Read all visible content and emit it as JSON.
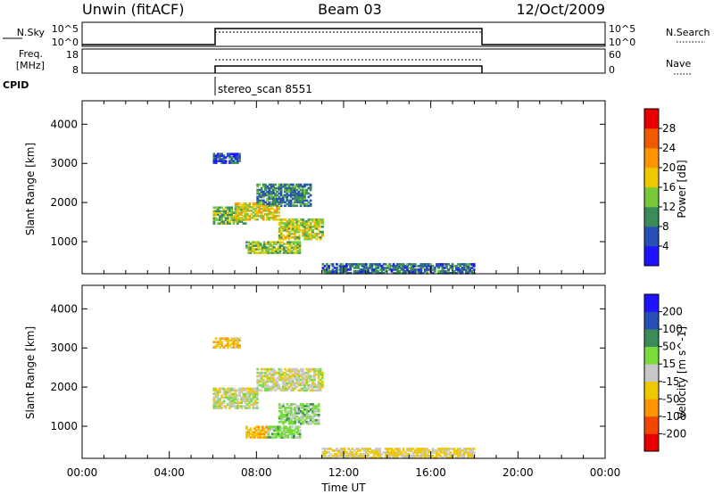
{
  "header": {
    "station": "Unwin (fitACF)",
    "beam": "Beam 03",
    "date": "12/Oct/2009"
  },
  "noise_panel": {
    "left_label": "N.Sky",
    "left_ticks": [
      "10^5",
      "10^0"
    ],
    "right_ticks": [
      "10^5",
      "10^0"
    ],
    "right_legend": "N.Search"
  },
  "freq_panel": {
    "left_label_1": "Freq.",
    "left_label_2": "[MHz]",
    "left_ticks": [
      "18",
      "8"
    ],
    "right_ticks": [
      "60",
      "0"
    ],
    "right_legend": "Nave"
  },
  "cpid": {
    "label": "CPID",
    "program": "stereo_scan 8551"
  },
  "x_axis": {
    "label": "Time UT",
    "ticks": [
      "00:00",
      "04:00",
      "08:00",
      "12:00",
      "16:00",
      "20:00",
      "00:00"
    ]
  },
  "colors": {
    "power": [
      "#1e14ff",
      "#2850b4",
      "#3c8c5a",
      "#78c83c",
      "#f0c800",
      "#ff9600",
      "#f05a00",
      "#e60000"
    ],
    "velocity": [
      "#e60000",
      "#f04600",
      "#ff9600",
      "#f0c800",
      "#c8c8c8",
      "#78dc3c",
      "#3c8c5a",
      "#2850b4",
      "#1e14ff"
    ]
  },
  "chart_data": [
    {
      "type": "heatmap",
      "name": "power",
      "xlabel": "Time UT",
      "ylabel": "Slant Range [km]",
      "xlim": [
        0,
        24
      ],
      "ylim": [
        180,
        4600
      ],
      "yticks": [
        1000,
        2000,
        3000,
        4000
      ],
      "colorbar_label": "Power [dB]",
      "colorbar_range": [
        0,
        32
      ],
      "colorbar_ticks": [
        "4",
        "8",
        "12",
        "16",
        "20",
        "24",
        "28"
      ],
      "regions": [
        {
          "t": [
            6.0,
            7.2
          ],
          "r": [
            3000,
            3250
          ],
          "v": 6
        },
        {
          "t": [
            6.0,
            7.5
          ],
          "r": [
            1450,
            1900
          ],
          "v": 13
        },
        {
          "t": [
            7.0,
            9.0
          ],
          "r": [
            1550,
            2000
          ],
          "v": 18
        },
        {
          "t": [
            8.0,
            10.5
          ],
          "r": [
            1900,
            2450
          ],
          "v": 9
        },
        {
          "t": [
            9.0,
            11.0
          ],
          "r": [
            1050,
            1550
          ],
          "v": 16
        },
        {
          "t": [
            7.5,
            10.0
          ],
          "r": [
            700,
            1000
          ],
          "v": 14
        },
        {
          "t": [
            11.0,
            18.0
          ],
          "r": [
            180,
            450
          ],
          "v": 8
        }
      ]
    },
    {
      "type": "heatmap",
      "name": "velocity",
      "xlabel": "Time UT",
      "ylabel": "Slant Range [km]",
      "xlim": [
        0,
        24
      ],
      "ylim": [
        180,
        4600
      ],
      "yticks": [
        1000,
        2000,
        3000,
        4000
      ],
      "colorbar_label": "Velocity [m s^-1]",
      "colorbar_range": [
        -250,
        250
      ],
      "colorbar_ticks": [
        "-200",
        "-100",
        "-50",
        "-15",
        "15",
        "50",
        "100",
        "200"
      ],
      "regions": [
        {
          "t": [
            6.0,
            7.2
          ],
          "r": [
            3000,
            3250
          ],
          "v": -40
        },
        {
          "t": [
            6.0,
            8.0
          ],
          "r": [
            1450,
            1950
          ],
          "v": 0
        },
        {
          "t": [
            8.0,
            11.0
          ],
          "r": [
            1900,
            2450
          ],
          "v": 0
        },
        {
          "t": [
            9.0,
            10.8
          ],
          "r": [
            1050,
            1550
          ],
          "v": 30
        },
        {
          "t": [
            7.5,
            8.5
          ],
          "r": [
            700,
            1000
          ],
          "v": -40
        },
        {
          "t": [
            8.5,
            10.0
          ],
          "r": [
            700,
            1000
          ],
          "v": 30
        },
        {
          "t": [
            11.0,
            18.0
          ],
          "r": [
            180,
            450
          ],
          "v": -20
        }
      ]
    }
  ]
}
